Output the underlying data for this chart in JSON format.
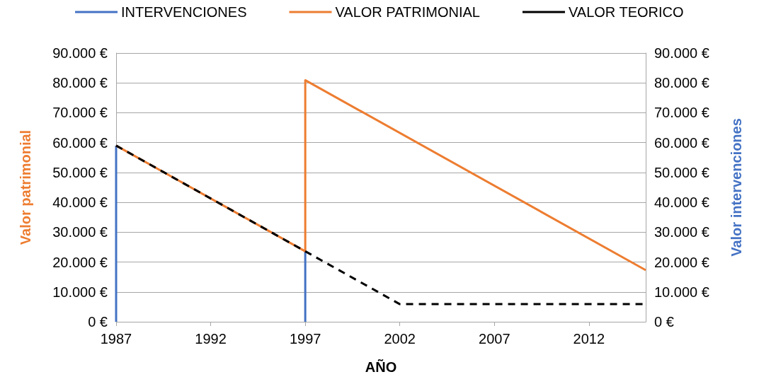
{
  "chart_data": {
    "type": "line",
    "xlabel": "AÑO",
    "ylabel": "Valor patrimonial",
    "y2label": "Valor intervenciones",
    "xlim": [
      1987,
      2015
    ],
    "xticks": [
      1987,
      1992,
      1997,
      2002,
      2007,
      2012
    ],
    "ylim": [
      0,
      90000
    ],
    "yticks": [
      {
        "value": 0,
        "label": "0 €"
      },
      {
        "value": 10000,
        "label": "10.000 €"
      },
      {
        "value": 20000,
        "label": "20.000 €"
      },
      {
        "value": 30000,
        "label": "30.000 €"
      },
      {
        "value": 40000,
        "label": "40.000 €"
      },
      {
        "value": 50000,
        "label": "50.000 €"
      },
      {
        "value": 60000,
        "label": "60.000 €"
      },
      {
        "value": 70000,
        "label": "70.000 €"
      },
      {
        "value": 80000,
        "label": "80.000 €"
      },
      {
        "value": 90000,
        "label": "90.000 €"
      }
    ],
    "y2lim": [
      0,
      90000
    ],
    "y2ticks": [
      {
        "value": 0,
        "label": "0 €"
      },
      {
        "value": 10000,
        "label": "10.000 €"
      },
      {
        "value": 20000,
        "label": "20.000 €"
      },
      {
        "value": 30000,
        "label": "30.000 €"
      },
      {
        "value": 40000,
        "label": "40.000 €"
      },
      {
        "value": 50000,
        "label": "50.000 €"
      },
      {
        "value": 60000,
        "label": "60.000 €"
      },
      {
        "value": 70000,
        "label": "70.000 €"
      },
      {
        "value": 80000,
        "label": "80.000 €"
      },
      {
        "value": 90000,
        "label": "90.000 €"
      }
    ],
    "grid": "y",
    "legend": "top",
    "marker": "none",
    "series": [
      {
        "name": "INTERVENCIONES",
        "type": "bar",
        "color": "#4472c4",
        "axis": "y2",
        "x": [
          1987,
          1997
        ],
        "values": [
          59000,
          23600
        ]
      },
      {
        "name": "VALOR PATRIMONIAL",
        "color": "#ed7d31",
        "x": [
          1987,
          1997,
          1997,
          2015
        ],
        "values": [
          59000,
          23600,
          80900,
          17300
        ]
      },
      {
        "name": "VALOR TEORICO",
        "color": "#000000",
        "line_style": "dashed",
        "x": [
          1987,
          1997,
          2002,
          2015
        ],
        "values": [
          59000,
          23600,
          5900,
          5900
        ]
      }
    ]
  }
}
